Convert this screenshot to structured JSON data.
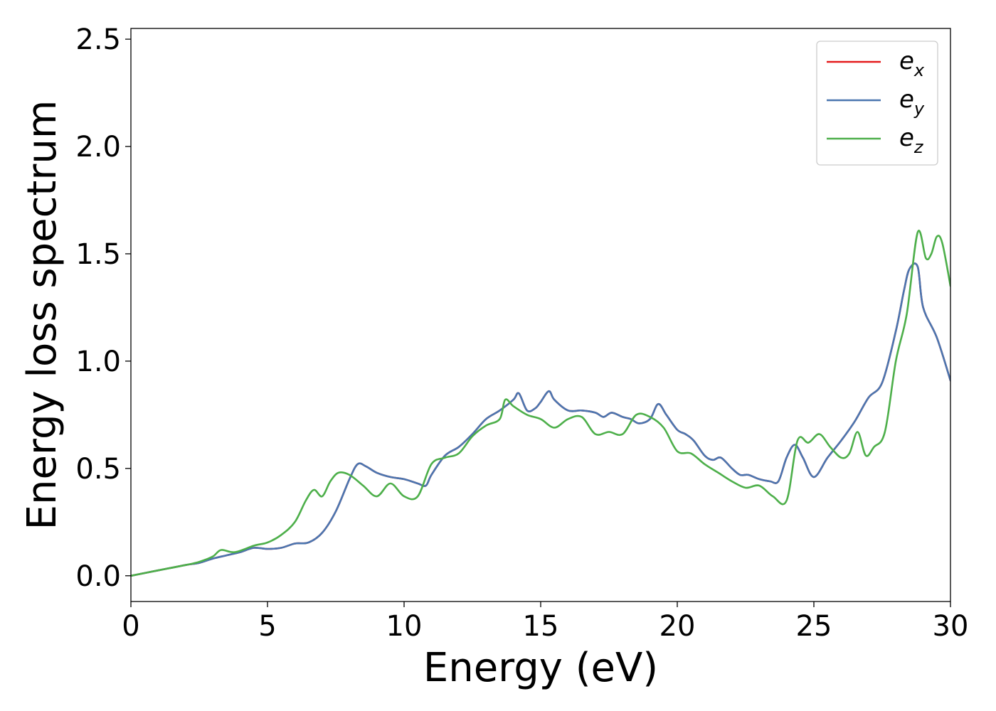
{
  "chart_data": {
    "type": "line",
    "title": "",
    "xlabel": "Energy (eV)",
    "ylabel": "Energy loss spectrum",
    "xlim": [
      0,
      30
    ],
    "ylim": [
      -0.12,
      2.55
    ],
    "xticks": [
      0,
      5,
      10,
      15,
      20,
      25,
      30
    ],
    "xtick_labels": [
      "0",
      "5",
      "10",
      "15",
      "20",
      "25",
      "30"
    ],
    "yticks": [
      0.0,
      0.5,
      1.0,
      1.5,
      2.0,
      2.5
    ],
    "ytick_labels": [
      "0.0",
      "0.5",
      "1.0",
      "1.5",
      "2.0",
      "2.5"
    ],
    "grid": false,
    "legend_position": "top-right",
    "series": [
      {
        "name": "e",
        "subscript": "x",
        "color": "#e41a1c",
        "x": [
          0,
          1,
          2,
          2.5,
          3,
          3.5,
          4,
          4.5,
          5,
          5.5,
          6,
          6.5,
          7,
          7.5,
          8,
          8.3,
          8.6,
          9,
          9.5,
          10,
          10.5,
          10.8,
          11,
          11.5,
          12,
          12.5,
          13,
          13.5,
          14,
          14.2,
          14.5,
          14.8,
          15,
          15.3,
          15.5,
          16,
          16.5,
          17,
          17.3,
          17.6,
          18,
          18.3,
          18.6,
          19,
          19.3,
          19.6,
          20,
          20.3,
          20.6,
          21,
          21.3,
          21.6,
          22,
          22.3,
          22.6,
          23,
          23.4,
          23.7,
          24,
          24.3,
          24.6,
          25,
          25.5,
          26,
          26.5,
          27,
          27.5,
          28,
          28.3,
          28.5,
          28.8,
          29,
          29.5,
          30
        ],
        "y": [
          0.0,
          0.025,
          0.05,
          0.06,
          0.08,
          0.095,
          0.11,
          0.13,
          0.125,
          0.13,
          0.15,
          0.155,
          0.2,
          0.3,
          0.45,
          0.52,
          0.51,
          0.48,
          0.46,
          0.45,
          0.43,
          0.42,
          0.47,
          0.56,
          0.6,
          0.66,
          0.73,
          0.77,
          0.82,
          0.85,
          0.77,
          0.78,
          0.81,
          0.86,
          0.82,
          0.77,
          0.77,
          0.76,
          0.74,
          0.76,
          0.74,
          0.73,
          0.71,
          0.73,
          0.8,
          0.75,
          0.68,
          0.66,
          0.63,
          0.56,
          0.54,
          0.55,
          0.5,
          0.47,
          0.47,
          0.45,
          0.44,
          0.44,
          0.55,
          0.61,
          0.55,
          0.46,
          0.55,
          0.63,
          0.72,
          0.83,
          0.9,
          1.14,
          1.33,
          1.43,
          1.44,
          1.25,
          1.11,
          0.91
        ]
      },
      {
        "name": "e",
        "subscript": "y",
        "color": "#4a76b0",
        "x": [
          0,
          1,
          2,
          2.5,
          3,
          3.5,
          4,
          4.5,
          5,
          5.5,
          6,
          6.5,
          7,
          7.5,
          8,
          8.3,
          8.6,
          9,
          9.5,
          10,
          10.5,
          10.8,
          11,
          11.5,
          12,
          12.5,
          13,
          13.5,
          14,
          14.2,
          14.5,
          14.8,
          15,
          15.3,
          15.5,
          16,
          16.5,
          17,
          17.3,
          17.6,
          18,
          18.3,
          18.6,
          19,
          19.3,
          19.6,
          20,
          20.3,
          20.6,
          21,
          21.3,
          21.6,
          22,
          22.3,
          22.6,
          23,
          23.4,
          23.7,
          24,
          24.3,
          24.6,
          25,
          25.5,
          26,
          26.5,
          27,
          27.5,
          28,
          28.3,
          28.5,
          28.8,
          29,
          29.5,
          30
        ],
        "y": [
          0.0,
          0.025,
          0.05,
          0.06,
          0.08,
          0.095,
          0.11,
          0.13,
          0.125,
          0.13,
          0.15,
          0.155,
          0.2,
          0.3,
          0.45,
          0.52,
          0.51,
          0.48,
          0.46,
          0.45,
          0.43,
          0.42,
          0.47,
          0.56,
          0.6,
          0.66,
          0.73,
          0.77,
          0.82,
          0.85,
          0.77,
          0.78,
          0.81,
          0.86,
          0.82,
          0.77,
          0.77,
          0.76,
          0.74,
          0.76,
          0.74,
          0.73,
          0.71,
          0.73,
          0.8,
          0.75,
          0.68,
          0.66,
          0.63,
          0.56,
          0.54,
          0.55,
          0.5,
          0.47,
          0.47,
          0.45,
          0.44,
          0.44,
          0.55,
          0.61,
          0.55,
          0.46,
          0.55,
          0.63,
          0.72,
          0.83,
          0.9,
          1.14,
          1.33,
          1.43,
          1.44,
          1.25,
          1.11,
          0.91
        ]
      },
      {
        "name": "e",
        "subscript": "z",
        "color": "#4daf4a",
        "x": [
          0,
          1,
          2,
          2.5,
          3,
          3.3,
          3.8,
          4.5,
          5,
          5.5,
          6,
          6.4,
          6.7,
          7,
          7.3,
          7.6,
          8,
          8.5,
          9,
          9.5,
          10,
          10.5,
          11,
          11.5,
          12,
          12.5,
          13,
          13.5,
          13.7,
          14,
          14.5,
          15,
          15.5,
          16,
          16.5,
          17,
          17.5,
          18,
          18.5,
          19,
          19.5,
          20,
          20.5,
          21,
          21.5,
          22,
          22.5,
          23,
          23.5,
          24,
          24.4,
          24.8,
          25.2,
          25.6,
          26,
          26.3,
          26.6,
          26.9,
          27.2,
          27.6,
          28,
          28.4,
          28.8,
          29.1,
          29.3,
          29.5,
          29.7,
          30
        ],
        "y": [
          0.0,
          0.025,
          0.05,
          0.065,
          0.09,
          0.12,
          0.11,
          0.14,
          0.155,
          0.19,
          0.25,
          0.35,
          0.4,
          0.37,
          0.44,
          0.48,
          0.47,
          0.42,
          0.37,
          0.43,
          0.37,
          0.37,
          0.52,
          0.55,
          0.57,
          0.65,
          0.7,
          0.73,
          0.82,
          0.79,
          0.75,
          0.73,
          0.69,
          0.73,
          0.74,
          0.66,
          0.67,
          0.66,
          0.75,
          0.74,
          0.69,
          0.58,
          0.57,
          0.52,
          0.48,
          0.44,
          0.41,
          0.42,
          0.37,
          0.35,
          0.63,
          0.62,
          0.66,
          0.6,
          0.55,
          0.57,
          0.67,
          0.56,
          0.6,
          0.67,
          1.0,
          1.22,
          1.6,
          1.48,
          1.5,
          1.58,
          1.55,
          1.35
        ]
      }
    ]
  }
}
